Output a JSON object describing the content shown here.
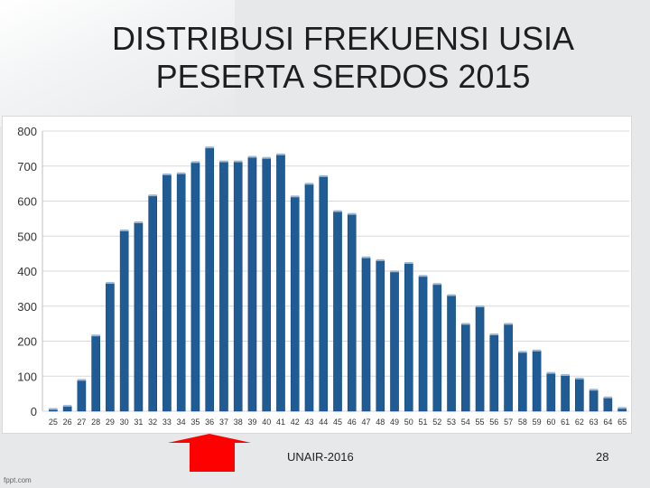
{
  "slide": {
    "title_line1": "DISTRIBUSI FREKUENSI USIA",
    "title_line2": "PESERTA SERDOS 2015",
    "footer": "UNAIR-2016",
    "page_number": "28",
    "watermark": "fppt.com"
  },
  "colors": {
    "bar": "#1f5b95",
    "bar_edge": "#14416e",
    "grid": "#d9d9d9",
    "arrow": "#ff0000",
    "axis_text": "#333333"
  },
  "chart_data": {
    "type": "bar",
    "title": "",
    "xlabel": "",
    "ylabel": "",
    "ylim": [
      0,
      800
    ],
    "yticks": [
      0,
      100,
      200,
      300,
      400,
      500,
      600,
      700,
      800
    ],
    "grid": true,
    "legend": "none",
    "categories": [
      "25",
      "26",
      "27",
      "28",
      "29",
      "30",
      "31",
      "32",
      "33",
      "34",
      "35",
      "36",
      "37",
      "38",
      "39",
      "40",
      "41",
      "42",
      "43",
      "44",
      "45",
      "46",
      "47",
      "48",
      "49",
      "50",
      "51",
      "52",
      "53",
      "54",
      "55",
      "56",
      "57",
      "58",
      "59",
      "60",
      "61",
      "62",
      "63",
      "64",
      "65"
    ],
    "values": [
      5,
      14,
      88,
      215,
      365,
      515,
      538,
      615,
      675,
      678,
      710,
      752,
      712,
      712,
      725,
      722,
      732,
      612,
      648,
      670,
      570,
      562,
      438,
      430,
      398,
      422,
      385,
      362,
      330,
      248,
      298,
      218,
      248,
      168,
      172,
      108,
      102,
      92,
      60,
      38,
      8
    ]
  }
}
